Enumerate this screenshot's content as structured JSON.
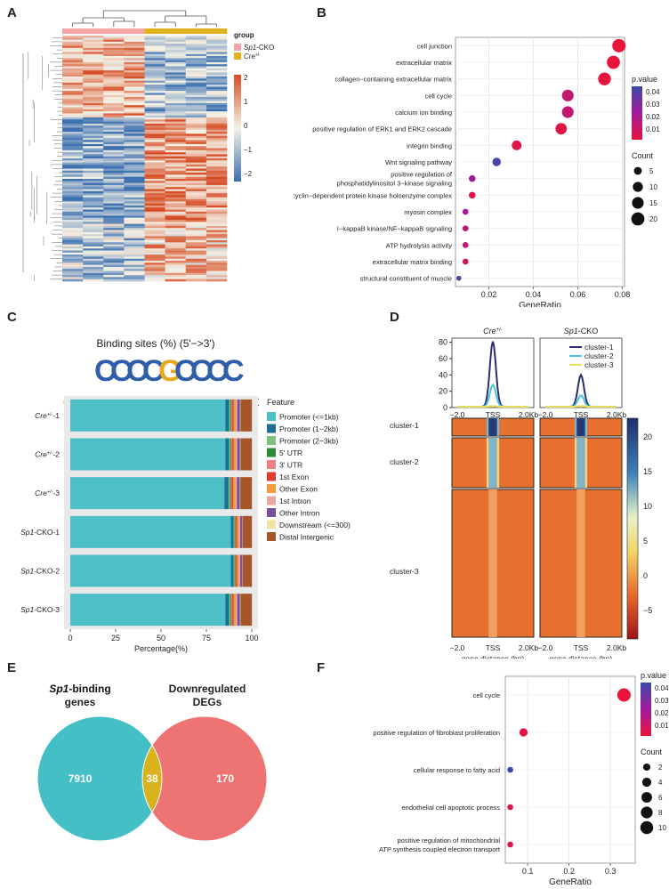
{
  "panels": {
    "A": "A",
    "B": "B",
    "C": "C",
    "D": "D",
    "E": "E",
    "F": "F"
  },
  "colors": {
    "pink": "#f4a6a6",
    "gold": "#e0b21c",
    "heat_low": "#3a6fb0",
    "heat_mid": "#f5f2e6",
    "heat_high": "#d64c24",
    "pv_low": "#e8143c",
    "pv_high": "#3b4aa8",
    "venn_left": "#45bfc6",
    "venn_right": "#ee7474",
    "venn_overlap": "#d9b21c"
  },
  "chart_data": [
    {
      "id": "A",
      "type": "heatmap",
      "legend_title": "group",
      "groups": [
        {
          "name": "Sp1-CKO",
          "italic": "Sp1",
          "rest": "-CKO",
          "color": "#f4a6a6"
        },
        {
          "name": "Cre+/-",
          "italic": "Cre",
          "sup": "+/-",
          "color": "#e0b21c"
        }
      ],
      "scale_ticks": [
        "2",
        "1",
        "0",
        "−1",
        "−2"
      ],
      "columns": 8
    },
    {
      "id": "B",
      "type": "scatter",
      "xlabel": "GeneRatio",
      "xticks": [
        "0.02",
        "0.04",
        "0.06",
        "0.08"
      ],
      "xlim": [
        0.005,
        0.081
      ],
      "color_legend": {
        "title": "p.value",
        "ticks": [
          "0.04",
          "0.03",
          "0.02",
          "0.01"
        ]
      },
      "size_legend": {
        "title": "Count",
        "values": [
          "5",
          "10",
          "15",
          "20"
        ]
      },
      "terms": [
        {
          "label": "cell junction",
          "ratio": 0.0785,
          "count": 21,
          "p": 0.002
        },
        {
          "label": "extracellular matrix",
          "ratio": 0.076,
          "count": 20,
          "p": 0.002
        },
        {
          "label": "collagen−containing extracellular matrix",
          "ratio": 0.072,
          "count": 19,
          "p": 0.003
        },
        {
          "label": "cell cycle",
          "ratio": 0.0555,
          "count": 15,
          "p": 0.014
        },
        {
          "label": "calcium ion binding",
          "ratio": 0.0555,
          "count": 15,
          "p": 0.014
        },
        {
          "label": "positive regulation of ERK1 and ERK2 cascade",
          "ratio": 0.0525,
          "count": 14,
          "p": 0.004
        },
        {
          "label": "integrin binding",
          "ratio": 0.0325,
          "count": 9,
          "p": 0.004
        },
        {
          "label": "Wnt signaling pathway",
          "ratio": 0.0235,
          "count": 6,
          "p": 0.042
        },
        {
          "label": "positive regulation of|phosphatidylinositol 3−kinase signaling",
          "ratio": 0.0125,
          "count": 3,
          "p": 0.024
        },
        {
          "label": "cyclin−dependent protein kinase holoenzyme complex",
          "ratio": 0.0125,
          "count": 3,
          "p": 0.004
        },
        {
          "label": "myosin complex",
          "ratio": 0.0095,
          "count": 2,
          "p": 0.022
        },
        {
          "label": "I−kappaB kinase/NF−kappaB signaling",
          "ratio": 0.0095,
          "count": 2,
          "p": 0.016
        },
        {
          "label": "ATP hydrolysis activity",
          "ratio": 0.0095,
          "count": 2,
          "p": 0.014
        },
        {
          "label": "extracellular matrix binding",
          "ratio": 0.0095,
          "count": 2,
          "p": 0.01
        },
        {
          "label": "structural constituent of muscle",
          "ratio": 0.0065,
          "count": 1,
          "p": 0.04
        }
      ]
    },
    {
      "id": "C",
      "type": "bar",
      "title": "Binding sites (%) (5'−>3')",
      "motif": "GGCCCCGCCCCC",
      "xlabel": "Percentage(%)",
      "xticks": [
        "0",
        "25",
        "50",
        "75",
        "100"
      ],
      "legend_title": "Feature",
      "features": [
        {
          "name": "Promoter (<=1kb)",
          "color": "#4cbfc7"
        },
        {
          "name": "Promoter (1−2kb)",
          "color": "#1f6e94"
        },
        {
          "name": "Promoter (2−3kb)",
          "color": "#7ec17e"
        },
        {
          "name": "5' UTR",
          "color": "#2e8b3a"
        },
        {
          "name": "3' UTR",
          "color": "#f08080"
        },
        {
          "name": "1st Exon",
          "color": "#e03c32"
        },
        {
          "name": "Other Exon",
          "color": "#f59a3a"
        },
        {
          "name": "1st Intron",
          "color": "#e8a8a0"
        },
        {
          "name": "Other Intron",
          "color": "#7b4fa0"
        },
        {
          "name": "Downstream (<=300)",
          "color": "#efe4a0"
        },
        {
          "name": "Distal Intergenic",
          "color": "#a65628"
        }
      ],
      "samples": [
        {
          "pre": "Cre",
          "sup": "+/-",
          "suf": "-1",
          "values": [
            85.5,
            2.0,
            0.8,
            0.5,
            0.5,
            0.7,
            1.2,
            0.8,
            1.5,
            0.3,
            6.2
          ]
        },
        {
          "pre": "Cre",
          "sup": "+/-",
          "suf": "-2",
          "values": [
            85.5,
            2.0,
            0.8,
            0.5,
            0.5,
            0.7,
            1.2,
            0.8,
            1.5,
            0.3,
            6.2
          ]
        },
        {
          "pre": "Cre",
          "sup": "+/-",
          "suf": "-3",
          "values": [
            85.0,
            2.2,
            0.8,
            0.5,
            0.5,
            0.7,
            1.2,
            0.9,
            1.6,
            0.3,
            6.3
          ]
        },
        {
          "pre": "Sp1",
          "sup": "",
          "suf": "-CKO-1",
          "values": [
            88.5,
            1.5,
            0.5,
            0.4,
            0.4,
            0.6,
            1.0,
            0.7,
            1.2,
            0.2,
            5.0
          ]
        },
        {
          "pre": "Sp1",
          "sup": "",
          "suf": "-CKO-2",
          "values": [
            88.5,
            1.5,
            0.5,
            0.4,
            0.4,
            0.6,
            1.0,
            0.7,
            1.2,
            0.2,
            5.0
          ]
        },
        {
          "pre": "Sp1",
          "sup": "",
          "suf": "-CKO-3",
          "values": [
            85.5,
            2.0,
            0.8,
            0.5,
            0.5,
            0.7,
            1.2,
            0.8,
            1.5,
            0.3,
            6.2
          ]
        }
      ]
    },
    {
      "id": "D",
      "type": "line",
      "cols": [
        {
          "pre": "Cre",
          "sup": "+/-"
        },
        {
          "pre": "Sp1",
          "sup": "-CKO"
        }
      ],
      "yticks": [
        "0",
        "20",
        "40",
        "60",
        "80"
      ],
      "ylim": [
        0,
        85
      ],
      "x_top_ticks": [
        "−2.0",
        "TSS",
        "2.0Kb"
      ],
      "x_bottom_ticks": [
        "−2.0",
        "TSS",
        "2.0Kb"
      ],
      "xlabel": "gene distance (bp)",
      "series": [
        {
          "name": "cluster-1",
          "color": "#2b2d6e",
          "peak": [
            81,
            40
          ]
        },
        {
          "name": "cluster-2",
          "color": "#4cc3e0",
          "peak": [
            28,
            15
          ]
        },
        {
          "name": "cluster-3",
          "color": "#f0e05a",
          "peak": [
            2,
            2
          ]
        }
      ],
      "row_labels": [
        "cluster-1",
        "cluster-2",
        "cluster-3"
      ],
      "colorbar_ticks": [
        "20",
        "15",
        "10",
        "5",
        "0",
        "−5"
      ]
    },
    {
      "id": "E",
      "type": "venn",
      "sets": [
        {
          "title_it": "Sp1",
          "title_rest": "-binding",
          "title2": "genes",
          "value": "7910"
        },
        {
          "title": "Downregulated",
          "title2": "DEGs",
          "value": "170"
        }
      ],
      "overlap": "38"
    },
    {
      "id": "F",
      "type": "scatter",
      "xlabel": "GeneRatio",
      "xticks": [
        "0.1",
        "0.2",
        "0.3"
      ],
      "xlim": [
        0.046,
        0.36
      ],
      "color_legend": {
        "title": "p.value",
        "ticks": [
          "0.04",
          "0.03",
          "0.02",
          "0.01"
        ]
      },
      "size_legend": {
        "title": "Count",
        "values": [
          "2",
          "4",
          "6",
          "8",
          "10"
        ]
      },
      "terms": [
        {
          "label": "cell cycle",
          "ratio": 0.333,
          "count": 11,
          "p": 0.002
        },
        {
          "label": "positive regulation of fibroblast proliferation",
          "ratio": 0.09,
          "count": 3,
          "p": 0.004
        },
        {
          "label": "cellular response to fatty acid",
          "ratio": 0.058,
          "count": 1,
          "p": 0.045
        },
        {
          "label": "endothelial cell apoptotic process",
          "ratio": 0.058,
          "count": 1,
          "p": 0.006
        },
        {
          "label": "positive regulation of mitochondrial|ATP synthesis coupled electron transport",
          "ratio": 0.058,
          "count": 1,
          "p": 0.006
        }
      ]
    }
  ]
}
